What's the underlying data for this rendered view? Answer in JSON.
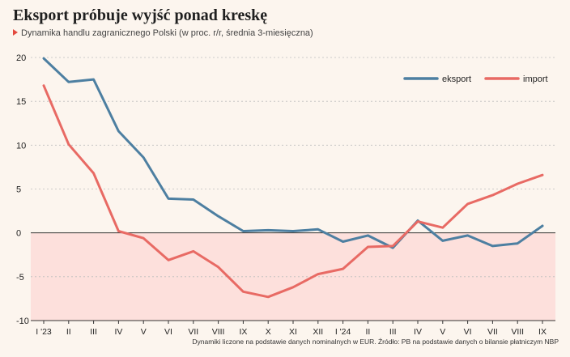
{
  "header": {
    "title": "Eksport próbuje wyjść ponad kreskę",
    "subtitle": "Dynamika handlu zagranicznego Polski (w proc. r/r, średnia 3-miesięczna)"
  },
  "footnote": "Dynamiki liczone na podstawie danych nominalnych w EUR. Źródło: PB na podstawie danych o bilansie płatniczym NBP",
  "colors": {
    "eksport": "#4d7fa1",
    "import": "#e86a64",
    "negative_band": "#fde0dc",
    "background": "#fcf5ee",
    "grid": "#bdbdbd"
  },
  "chart_data": {
    "type": "line",
    "title": "Eksport próbuje wyjść ponad kreskę",
    "xlabel": "",
    "ylabel": "",
    "ylim": [
      -10,
      20
    ],
    "yticks": [
      20,
      15,
      10,
      5,
      0,
      -5,
      -10
    ],
    "ytick_labels": [
      "20",
      "15",
      "10",
      "5",
      "0",
      "-5",
      "-10"
    ],
    "categories": [
      "I '23",
      "II",
      "III",
      "IV",
      "V",
      "VI",
      "VII",
      "VIII",
      "IX",
      "X",
      "XI",
      "XII",
      "I '24",
      "II",
      "III",
      "IV",
      "V",
      "VI",
      "VII",
      "VIII",
      "IX"
    ],
    "legend_position": "top-right",
    "grid": "horizontal-dashed",
    "series": [
      {
        "name": "eksport",
        "values": [
          19.9,
          17.2,
          17.5,
          11.6,
          8.6,
          3.9,
          3.8,
          1.9,
          0.2,
          0.3,
          0.2,
          0.4,
          -1.0,
          -0.3,
          -1.7,
          1.4,
          -0.9,
          -0.3,
          -1.5,
          -1.2,
          0.8
        ]
      },
      {
        "name": "import",
        "values": [
          16.8,
          10.1,
          6.8,
          0.2,
          -0.6,
          -3.1,
          -2.1,
          -3.9,
          -6.7,
          -7.3,
          -6.2,
          -4.7,
          -4.1,
          -1.6,
          -1.5,
          1.3,
          0.6,
          3.3,
          4.3,
          5.6,
          6.6
        ]
      }
    ]
  }
}
